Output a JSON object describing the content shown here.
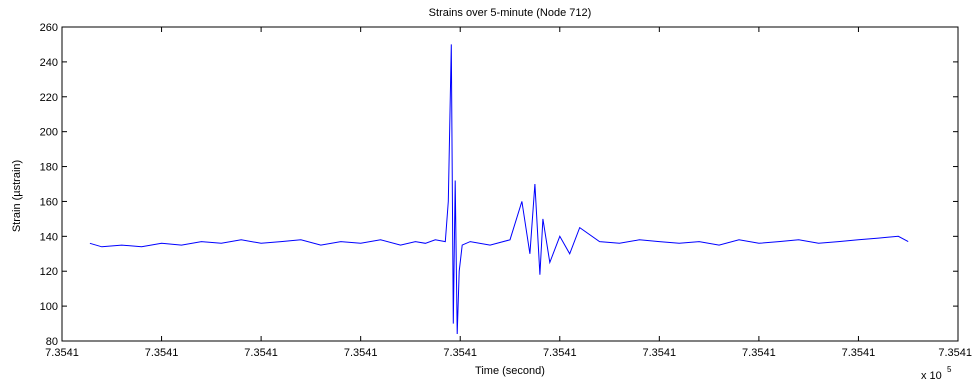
{
  "chart_data": {
    "type": "line",
    "title": "Strains over 5-minute (Node 712)",
    "xlabel": "Time (second)",
    "ylabel": "Strain (µstrain)",
    "x_multiplier_label": "x 10",
    "x_multiplier_exponent": "5",
    "x_tick_labels": [
      "7.3541",
      "7.3541",
      "7.3541",
      "7.3541",
      "7.3541",
      "7.3541",
      "7.3541",
      "7.3541",
      "7.3541",
      "7.3541"
    ],
    "y_ticks": [
      80,
      100,
      120,
      140,
      160,
      180,
      200,
      220,
      240,
      260
    ],
    "ylim": [
      80,
      260
    ],
    "x_range_ticks": [
      0,
      9
    ],
    "grid": false,
    "line_color": "#0000ff",
    "series": [
      {
        "x": [
          0.28,
          0.4,
          0.6,
          0.8,
          1.0,
          1.2,
          1.4,
          1.6,
          1.8,
          2.0,
          2.2,
          2.4,
          2.6,
          2.8,
          3.0,
          3.2,
          3.4,
          3.55,
          3.65,
          3.75,
          3.85,
          3.88,
          3.91,
          3.93,
          3.95,
          3.97,
          3.99,
          4.02,
          4.1,
          4.3,
          4.5,
          4.62,
          4.7,
          4.75,
          4.8,
          4.83,
          4.9,
          5.0,
          5.1,
          5.2,
          5.4,
          5.6,
          5.8,
          6.0,
          6.2,
          6.4,
          6.6,
          6.8,
          7.0,
          7.2,
          7.4,
          7.6,
          7.8,
          8.0,
          8.2,
          8.4,
          8.5
        ],
        "y": [
          136,
          134,
          135,
          134,
          136,
          135,
          137,
          136,
          138,
          136,
          137,
          138,
          135,
          137,
          136,
          138,
          135,
          137,
          136,
          138,
          137,
          160,
          250,
          90,
          172,
          84,
          120,
          135,
          137,
          135,
          138,
          160,
          130,
          170,
          118,
          150,
          125,
          140,
          130,
          145,
          137,
          136,
          138,
          137,
          136,
          137,
          135,
          138,
          136,
          137,
          138,
          136,
          137,
          138,
          139,
          140,
          137
        ]
      }
    ]
  }
}
